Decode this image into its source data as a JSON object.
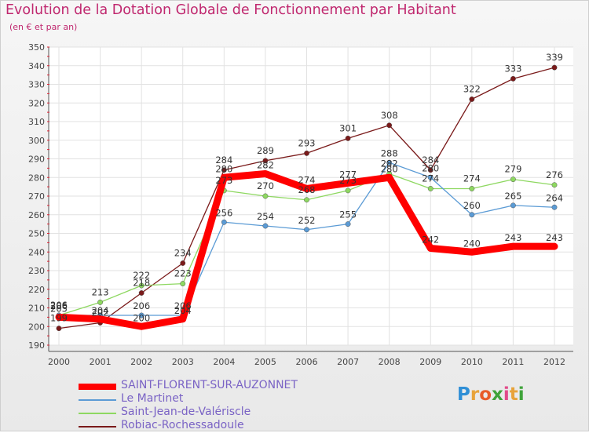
{
  "header": {
    "title": "Evolution de la Dotation Globale de Fonctionnement par Habitant",
    "subtitle": "(en € et par an)"
  },
  "logo": {
    "text": "Proxiti",
    "letters": [
      "P",
      "r",
      "o",
      "x",
      "i",
      "t",
      "i"
    ],
    "colors": [
      "#2f8fd6",
      "#e8a33a",
      "#e85b2a",
      "#3fa33a",
      "#e24a8a",
      "#e8a33a",
      "#3fa33a"
    ]
  },
  "chart_data": {
    "type": "line",
    "title": "Evolution de la Dotation Globale de Fonctionnement par Habitant",
    "subtitle": "(en € et par an)",
    "x": [
      "2000",
      "2001",
      "2002",
      "2003",
      "2004",
      "2005",
      "2006",
      "2007",
      "2008",
      "2009",
      "2010",
      "2011",
      "2012"
    ],
    "ylim": [
      190,
      350
    ],
    "yticks": [
      190,
      200,
      210,
      220,
      230,
      240,
      250,
      260,
      270,
      280,
      290,
      300,
      310,
      320,
      330,
      340,
      350
    ],
    "grid": true,
    "legend_position": "bottom-left",
    "series": [
      {
        "name": "SAINT-FLORENT-SUR-AUZONNET",
        "color": "#ff0000",
        "values": [
          205,
          204,
          200,
          204,
          280,
          282,
          274,
          277,
          280,
          242,
          240,
          243,
          243
        ],
        "labels": [
          "205",
          "204",
          "200",
          "204",
          "280",
          "282",
          "274",
          "277",
          "280",
          "242",
          "240",
          "243",
          "243"
        ]
      },
      {
        "name": "Le Martinet",
        "color": "#5b9bd5",
        "values": [
          206,
          206,
          206,
          206,
          256,
          254,
          252,
          255,
          288,
          280,
          260,
          265,
          264
        ],
        "labels": [
          "206",
          "",
          "206",
          "206",
          "256",
          "254",
          "252",
          "255",
          "288",
          "280",
          "260",
          "265",
          "264"
        ]
      },
      {
        "name": "Saint-Jean-de-Valériscle",
        "color": "#8ed861",
        "values": [
          206,
          213,
          222,
          223,
          273,
          270,
          268,
          273,
          282,
          274,
          274,
          279,
          276
        ],
        "labels": [
          "206",
          "213",
          "222",
          "223",
          "273",
          "270",
          "268",
          "273",
          "282",
          "274",
          "274",
          "279",
          "276"
        ]
      },
      {
        "name": "Robiac-Rochessadoule",
        "color": "#7a1a1a",
        "values": [
          199,
          202,
          218,
          234,
          284,
          289,
          293,
          301,
          308,
          284,
          322,
          333,
          339
        ],
        "labels": [
          "199",
          "202",
          "218",
          "234",
          "284",
          "289",
          "293",
          "301",
          "308",
          "284",
          "322",
          "333",
          "339"
        ]
      }
    ]
  }
}
